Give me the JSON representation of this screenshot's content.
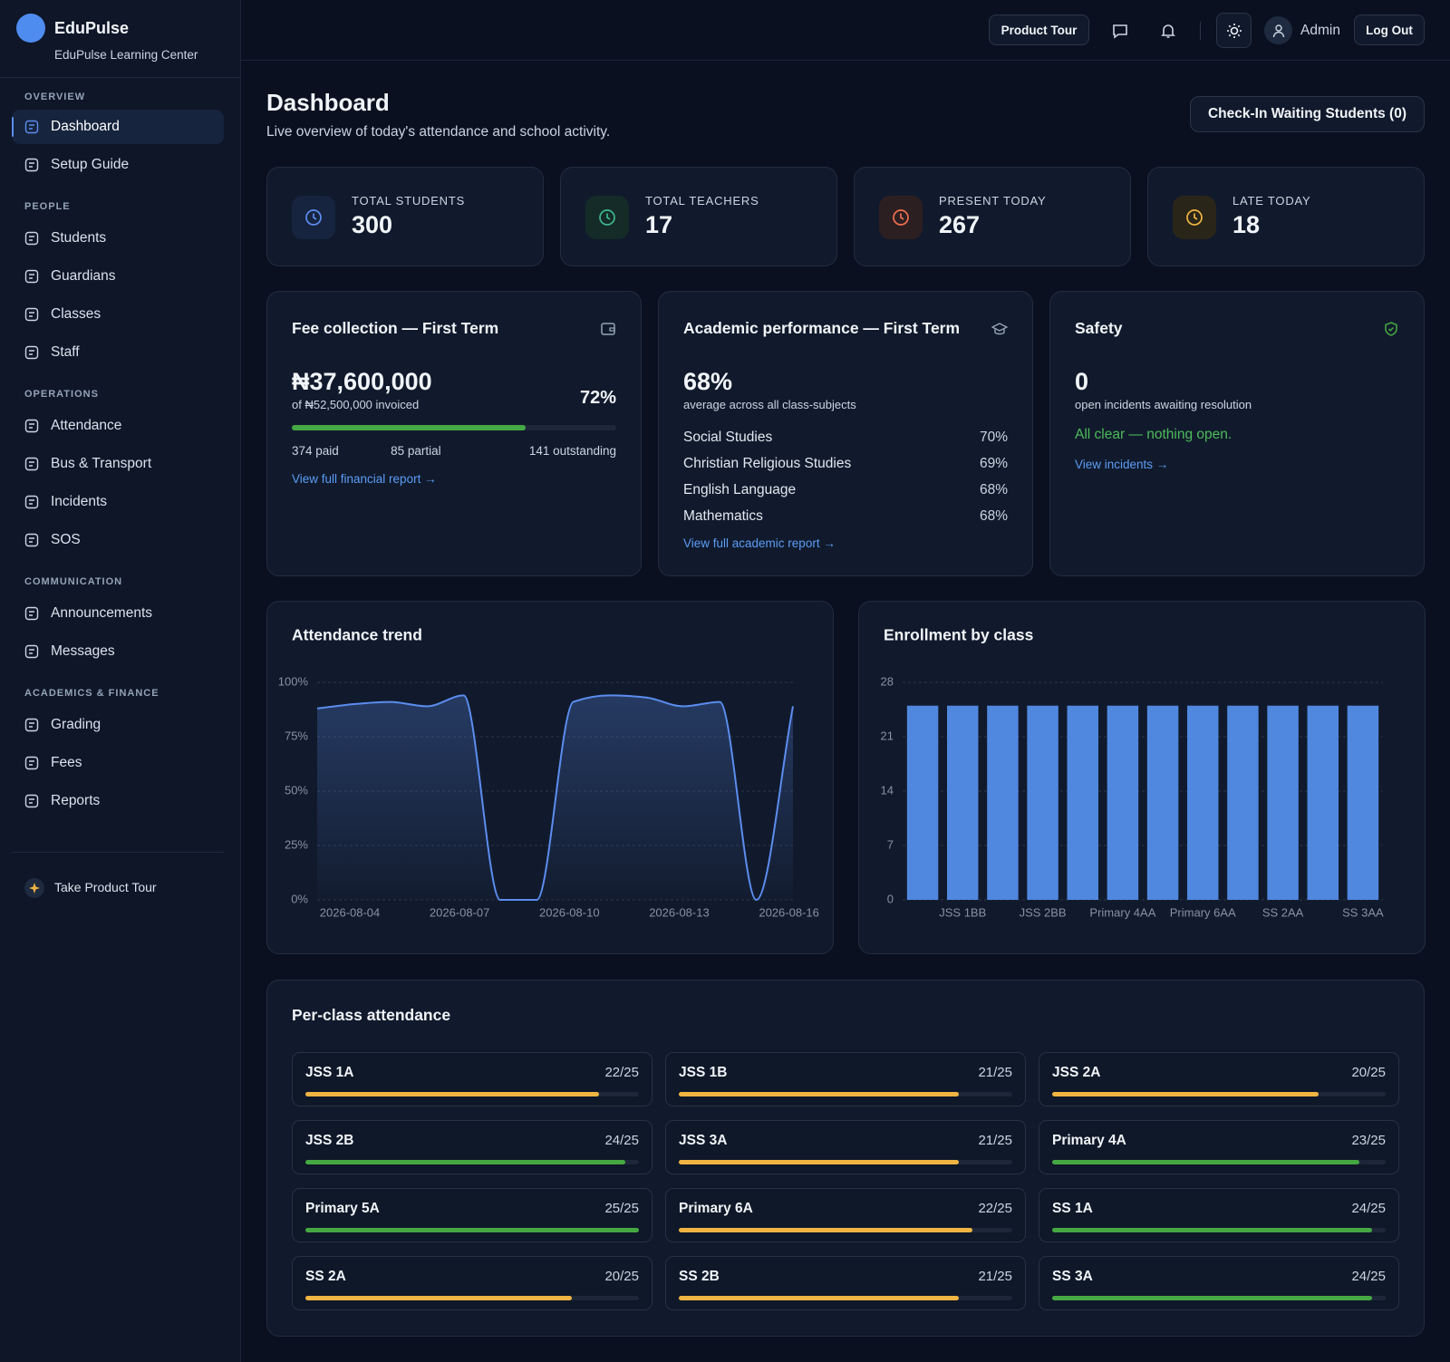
{
  "sidebar": {
    "brand": "EduPulse",
    "org": "EduPulse Learning Center",
    "sections": [
      {
        "title": "OVERVIEW",
        "items": [
          "Dashboard",
          "Setup Guide"
        ]
      },
      {
        "title": "PEOPLE",
        "items": [
          "Students",
          "Guardians",
          "Classes",
          "Staff"
        ]
      },
      {
        "title": "OPERATIONS",
        "items": [
          "Attendance",
          "Bus & Transport",
          "Incidents",
          "SOS"
        ]
      },
      {
        "title": "COMMUNICATION",
        "items": [
          "Announcements",
          "Messages"
        ]
      },
      {
        "title": "ACADEMICS & FINANCE",
        "items": [
          "Grading",
          "Fees",
          "Reports"
        ]
      }
    ],
    "footer": "Take Product Tour"
  },
  "topbar": {
    "tour": "Product Tour",
    "user": "Admin",
    "logout": "Log Out"
  },
  "header": {
    "title": "Dashboard",
    "subtitle": "Live overview of today's attendance and school activity.",
    "action": "Check-In Waiting Students (0)"
  },
  "stats": [
    {
      "label": "TOTAL STUDENTS",
      "value": 300
    },
    {
      "label": "TOTAL TEACHERS",
      "value": 17
    },
    {
      "label": "PRESENT TODAY",
      "value": 267
    },
    {
      "label": "LATE TODAY",
      "value": 18
    }
  ],
  "fee": {
    "title": "Fee collection — First Term",
    "amount": "₦37,600,000",
    "invoiced": "of ₦52,500,000 invoiced",
    "progress": {
      "value": 72,
      "label": "72%"
    },
    "paid": "374 paid",
    "partial": "85 partial",
    "outstanding": "141 outstanding",
    "link": "View full financial report →"
  },
  "academic": {
    "title": "Academic performance — First Term",
    "average": "68%",
    "note": "average across all class-subjects",
    "subjects": [
      {
        "name": "Social Studies",
        "score": "70%"
      },
      {
        "name": "Christian Religious Studies",
        "score": "69%"
      },
      {
        "name": "English Language",
        "score": "68%"
      },
      {
        "name": "Mathematics",
        "score": "68%"
      }
    ],
    "link": "View full academic report →"
  },
  "safety": {
    "title": "Safety",
    "count": 0,
    "note": "open incidents awaiting resolution",
    "status": "All clear — nothing open.",
    "link": "View incidents →"
  },
  "chart_data": [
    {
      "type": "line",
      "title": "Attendance trend",
      "categories": [
        "2026-08-04",
        null,
        null,
        "2026-08-07",
        null,
        null,
        "2026-08-10",
        null,
        null,
        "2026-08-13",
        null,
        null,
        "2026-08-16",
        null
      ],
      "values": [
        88,
        90,
        91,
        89,
        94,
        0,
        0,
        91,
        94,
        93,
        89,
        91,
        0,
        89
      ],
      "color": "#5b8def",
      "ylim": [
        0,
        100
      ],
      "yticks": [
        {
          "value": 0,
          "label": "0%"
        },
        {
          "value": 25,
          "label": "25%"
        },
        {
          "value": 50,
          "label": "50%"
        },
        {
          "value": 75,
          "label": "75%"
        },
        {
          "value": 100,
          "label": "100%"
        }
      ],
      "grid": true
    },
    {
      "type": "bar",
      "title": "Enrollment by class",
      "categories": [
        null,
        "JSS 1BB",
        null,
        "JSS 2BB",
        null,
        "Primary 4AA",
        null,
        "Primary 6AA",
        null,
        "SS 2AA",
        null,
        "SS 3AA"
      ],
      "values": [
        25,
        25,
        25,
        25,
        25,
        25,
        25,
        25,
        25,
        25,
        25,
        25
      ],
      "color": "#5088e0",
      "ylim": [
        0,
        28
      ],
      "yticks": [
        0,
        7,
        14,
        21,
        28
      ],
      "grid": true
    }
  ],
  "per_class": {
    "title": "Per-class attendance",
    "classes": [
      {
        "name": "JSS 1A",
        "present": 22,
        "capacity": 25,
        "label": "22/25",
        "color": "#f0b443"
      },
      {
        "name": "JSS 1B",
        "present": 21,
        "capacity": 25,
        "label": "21/25",
        "color": "#f0b443"
      },
      {
        "name": "JSS 2A",
        "present": 20,
        "capacity": 25,
        "label": "20/25",
        "color": "#f0b443"
      },
      {
        "name": "JSS 2B",
        "present": 24,
        "capacity": 25,
        "label": "24/25",
        "color": "#45a843"
      },
      {
        "name": "JSS 3A",
        "present": 21,
        "capacity": 25,
        "label": "21/25",
        "color": "#f0b443"
      },
      {
        "name": "Primary 4A",
        "present": 23,
        "capacity": 25,
        "label": "23/25",
        "color": "#45a843"
      },
      {
        "name": "Primary 5A",
        "present": 25,
        "capacity": 25,
        "label": "25/25",
        "color": "#45a843"
      },
      {
        "name": "Primary 6A",
        "present": 22,
        "capacity": 25,
        "label": "22/25",
        "color": "#f0b443"
      },
      {
        "name": "SS 1A",
        "present": 24,
        "capacity": 25,
        "label": "24/25",
        "color": "#45a843"
      },
      {
        "name": "SS 2A",
        "present": 20,
        "capacity": 25,
        "label": "20/25",
        "color": "#f0b443"
      },
      {
        "name": "SS 2B",
        "present": 21,
        "capacity": 25,
        "label": "21/25",
        "color": "#f0b443"
      },
      {
        "name": "SS 3A",
        "present": 24,
        "capacity": 25,
        "label": "24/25",
        "color": "#45a843"
      }
    ]
  }
}
